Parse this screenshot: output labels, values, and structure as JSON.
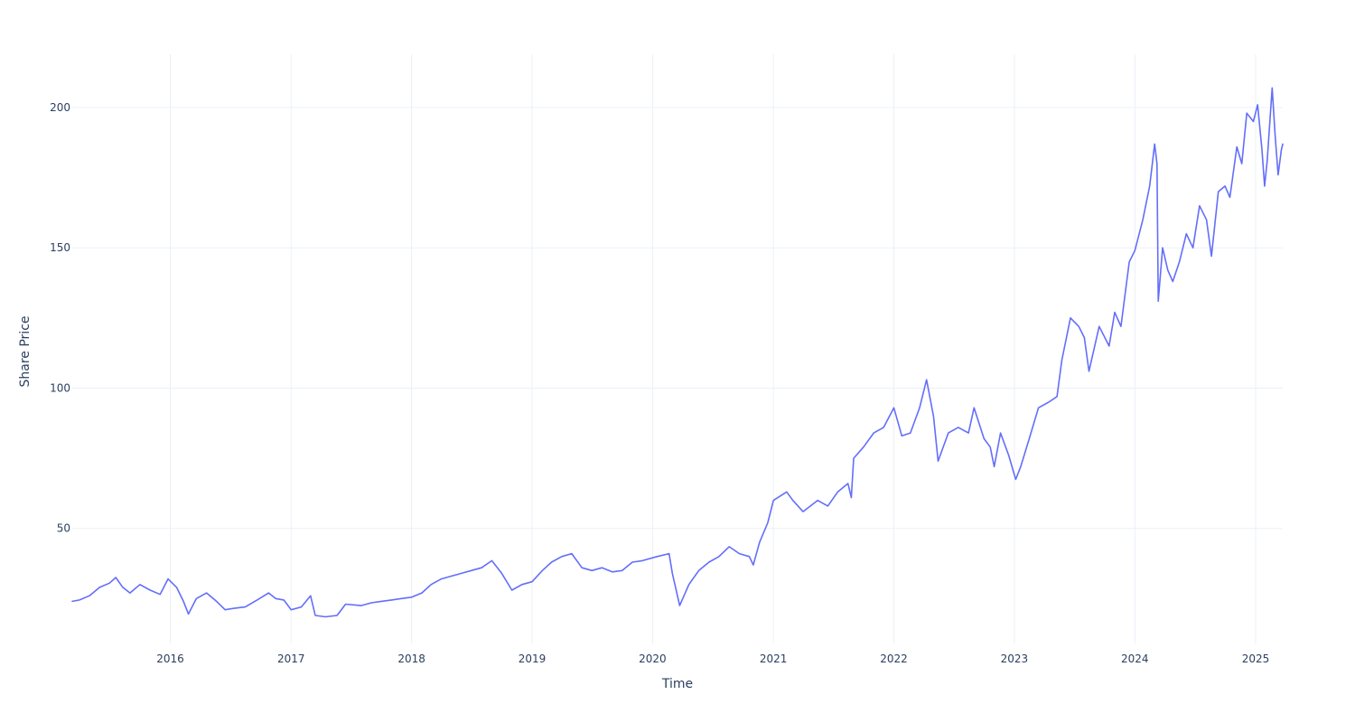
{
  "chart_data": {
    "type": "line",
    "title": "",
    "xlabel": "Time",
    "ylabel": "Share Price",
    "x_tick_labels": [
      "2016",
      "2017",
      "2018",
      "2019",
      "2020",
      "2021",
      "2022",
      "2023",
      "2024",
      "2025"
    ],
    "y_tick_labels": [
      "50",
      "100",
      "150",
      "200"
    ],
    "y_ticks": [
      50,
      100,
      150,
      200
    ],
    "xlim": [
      "2015-03-10",
      "2025-03-24"
    ],
    "ylim": [
      9,
      219
    ],
    "grid": true,
    "legend": "none",
    "series_color": "#636efa",
    "series": [
      {
        "points": [
          [
            "2015-03-10",
            24
          ],
          [
            "2015-04-01",
            24.5
          ],
          [
            "2015-05-01",
            26
          ],
          [
            "2015-06-01",
            29
          ],
          [
            "2015-07-01",
            30.5
          ],
          [
            "2015-07-20",
            32.5
          ],
          [
            "2015-08-10",
            29
          ],
          [
            "2015-09-01",
            27
          ],
          [
            "2015-10-01",
            30
          ],
          [
            "2015-11-01",
            28
          ],
          [
            "2015-12-01",
            26.5
          ],
          [
            "2015-12-25",
            32
          ],
          [
            "2016-01-20",
            29
          ],
          [
            "2016-02-10",
            24
          ],
          [
            "2016-02-25",
            19.5
          ],
          [
            "2016-03-20",
            25
          ],
          [
            "2016-04-20",
            27
          ],
          [
            "2016-05-20",
            24
          ],
          [
            "2016-06-15",
            21
          ],
          [
            "2016-07-10",
            21.5
          ],
          [
            "2016-08-15",
            22
          ],
          [
            "2016-09-20",
            24.5
          ],
          [
            "2016-10-25",
            27
          ],
          [
            "2016-11-15",
            25
          ],
          [
            "2016-12-10",
            24.5
          ],
          [
            "2017-01-01",
            21
          ],
          [
            "2017-02-01",
            22
          ],
          [
            "2017-03-01",
            26
          ],
          [
            "2017-03-15",
            19
          ],
          [
            "2017-04-15",
            18.5
          ],
          [
            "2017-05-20",
            19
          ],
          [
            "2017-06-15",
            23
          ],
          [
            "2017-08-01",
            22.5
          ],
          [
            "2017-09-01",
            23.5
          ],
          [
            "2017-10-01",
            24
          ],
          [
            "2017-11-01",
            24.5
          ],
          [
            "2017-12-01",
            25
          ],
          [
            "2018-01-01",
            25.5
          ],
          [
            "2018-02-01",
            27
          ],
          [
            "2018-03-01",
            30
          ],
          [
            "2018-04-01",
            32
          ],
          [
            "2018-05-01",
            33
          ],
          [
            "2018-06-01",
            34
          ],
          [
            "2018-07-01",
            35
          ],
          [
            "2018-08-01",
            36
          ],
          [
            "2018-09-01",
            38.5
          ],
          [
            "2018-10-01",
            34
          ],
          [
            "2018-11-01",
            28
          ],
          [
            "2018-12-01",
            30
          ],
          [
            "2019-01-01",
            31
          ],
          [
            "2019-02-01",
            35
          ],
          [
            "2019-03-01",
            38
          ],
          [
            "2019-04-01",
            40
          ],
          [
            "2019-05-01",
            41
          ],
          [
            "2019-06-01",
            36
          ],
          [
            "2019-07-01",
            35
          ],
          [
            "2019-08-01",
            36
          ],
          [
            "2019-09-01",
            34.5
          ],
          [
            "2019-10-01",
            35
          ],
          [
            "2019-11-01",
            38
          ],
          [
            "2019-12-01",
            38.5
          ],
          [
            "2020-01-15",
            40
          ],
          [
            "2020-02-20",
            41
          ],
          [
            "2020-03-01",
            34
          ],
          [
            "2020-03-23",
            22.5
          ],
          [
            "2020-04-20",
            30
          ],
          [
            "2020-05-20",
            35
          ],
          [
            "2020-06-20",
            38
          ],
          [
            "2020-07-20",
            40
          ],
          [
            "2020-08-20",
            43.5
          ],
          [
            "2020-09-20",
            41
          ],
          [
            "2020-10-20",
            40
          ],
          [
            "2020-11-01",
            37
          ],
          [
            "2020-11-20",
            45
          ],
          [
            "2020-12-15",
            52
          ],
          [
            "2021-01-01",
            60
          ],
          [
            "2021-02-10",
            63
          ],
          [
            "2021-03-01",
            60
          ],
          [
            "2021-04-01",
            56
          ],
          [
            "2021-05-15",
            60
          ],
          [
            "2021-06-15",
            58
          ],
          [
            "2021-07-15",
            63
          ],
          [
            "2021-08-15",
            66
          ],
          [
            "2021-08-25",
            61
          ],
          [
            "2021-09-01",
            75
          ],
          [
            "2021-10-01",
            79
          ],
          [
            "2021-11-01",
            84
          ],
          [
            "2021-12-01",
            86
          ],
          [
            "2022-01-01",
            93
          ],
          [
            "2022-01-25",
            83
          ],
          [
            "2022-02-20",
            84
          ],
          [
            "2022-03-20",
            93
          ],
          [
            "2022-04-10",
            103
          ],
          [
            "2022-05-01",
            90
          ],
          [
            "2022-05-15",
            74
          ],
          [
            "2022-06-15",
            84
          ],
          [
            "2022-07-15",
            86
          ],
          [
            "2022-08-15",
            84
          ],
          [
            "2022-09-01",
            93
          ],
          [
            "2022-10-01",
            82
          ],
          [
            "2022-10-20",
            79
          ],
          [
            "2022-11-01",
            72
          ],
          [
            "2022-11-20",
            84
          ],
          [
            "2022-12-15",
            76
          ],
          [
            "2023-01-05",
            67.5
          ],
          [
            "2023-01-20",
            72
          ],
          [
            "2023-02-15",
            82
          ],
          [
            "2023-03-15",
            93
          ],
          [
            "2023-04-15",
            95
          ],
          [
            "2023-05-10",
            97
          ],
          [
            "2023-05-25",
            110
          ],
          [
            "2023-06-20",
            125
          ],
          [
            "2023-07-15",
            122
          ],
          [
            "2023-08-01",
            118
          ],
          [
            "2023-08-15",
            106
          ],
          [
            "2023-09-15",
            122
          ],
          [
            "2023-10-15",
            115
          ],
          [
            "2023-11-01",
            127
          ],
          [
            "2023-11-20",
            122
          ],
          [
            "2023-12-15",
            145
          ],
          [
            "2024-01-01",
            149
          ],
          [
            "2024-01-25",
            160
          ],
          [
            "2024-02-15",
            172
          ],
          [
            "2024-03-01",
            187
          ],
          [
            "2024-03-08",
            180
          ],
          [
            "2024-03-12",
            131
          ],
          [
            "2024-03-25",
            150
          ],
          [
            "2024-04-10",
            142
          ],
          [
            "2024-04-25",
            138
          ],
          [
            "2024-05-15",
            145
          ],
          [
            "2024-06-05",
            155
          ],
          [
            "2024-06-25",
            150
          ],
          [
            "2024-07-15",
            165
          ],
          [
            "2024-08-05",
            160
          ],
          [
            "2024-08-20",
            147
          ],
          [
            "2024-09-10",
            170
          ],
          [
            "2024-09-30",
            172
          ],
          [
            "2024-10-15",
            168
          ],
          [
            "2024-11-05",
            186
          ],
          [
            "2024-11-20",
            180
          ],
          [
            "2024-12-05",
            198
          ],
          [
            "2024-12-25",
            195
          ],
          [
            "2025-01-07",
            201
          ],
          [
            "2025-01-20",
            185
          ],
          [
            "2025-01-28",
            172
          ],
          [
            "2025-02-05",
            181
          ],
          [
            "2025-02-20",
            207
          ],
          [
            "2025-03-01",
            190
          ],
          [
            "2025-03-10",
            176
          ],
          [
            "2025-03-20",
            185
          ],
          [
            "2025-03-24",
            187
          ]
        ]
      }
    ]
  }
}
